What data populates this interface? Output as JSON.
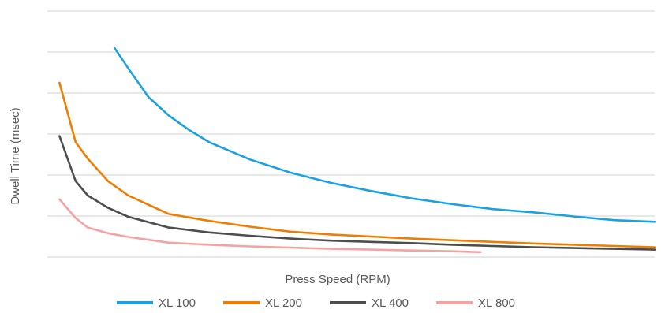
{
  "chart_data": {
    "type": "line",
    "title": "",
    "xlabel": "Press Speed (RPM)",
    "ylabel": "Dwell Time (msec)",
    "x_tick_labels": false,
    "y_tick_labels": false,
    "grid": true,
    "ylim": [
      0,
      6
    ],
    "xlim": [
      0,
      15
    ],
    "legend_position": "bottom",
    "series": [
      {
        "name": "XL 100",
        "color": "#1ba1e2",
        "x": [
          1.66,
          2.0,
          2.5,
          3.0,
          3.5,
          4.0,
          5.0,
          6.0,
          7.0,
          8.0,
          9.0,
          10.0,
          11.0,
          12.0,
          13.0,
          14.0,
          15.0
        ],
        "y": [
          5.1,
          4.6,
          3.9,
          3.45,
          3.1,
          2.8,
          2.38,
          2.06,
          1.81,
          1.61,
          1.43,
          1.29,
          1.17,
          1.09,
          0.99,
          0.9,
          0.86
        ]
      },
      {
        "name": "XL 200",
        "color": "#ee7d00",
        "x": [
          0.3,
          0.7,
          1.0,
          1.5,
          2.0,
          3.0,
          4.0,
          5.0,
          6.0,
          7.0,
          8.0,
          9.0,
          10.0,
          11.0,
          12.0,
          13.0,
          14.0,
          15.0
        ],
        "y": [
          4.25,
          2.8,
          2.4,
          1.85,
          1.5,
          1.05,
          0.88,
          0.74,
          0.62,
          0.55,
          0.5,
          0.45,
          0.41,
          0.37,
          0.33,
          0.3,
          0.27,
          0.24
        ]
      },
      {
        "name": "XL 400",
        "color": "#4d4d4d",
        "x": [
          0.3,
          0.7,
          1.0,
          1.5,
          2.0,
          3.0,
          4.0,
          5.0,
          6.0,
          7.0,
          8.0,
          9.0,
          10.0,
          11.0,
          12.0,
          13.0,
          14.0,
          15.0
        ],
        "y": [
          2.95,
          1.85,
          1.5,
          1.2,
          0.98,
          0.72,
          0.6,
          0.52,
          0.45,
          0.4,
          0.37,
          0.34,
          0.3,
          0.27,
          0.24,
          0.22,
          0.2,
          0.18
        ]
      },
      {
        "name": "XL 800",
        "color": "#f4a3a3",
        "x": [
          0.3,
          0.7,
          1.0,
          1.5,
          2.0,
          3.0,
          4.0,
          5.0,
          6.0,
          7.0,
          8.0,
          9.0,
          10.0,
          10.7
        ],
        "y": [
          1.41,
          0.95,
          0.72,
          0.58,
          0.49,
          0.35,
          0.3,
          0.26,
          0.23,
          0.2,
          0.18,
          0.16,
          0.14,
          0.12
        ]
      }
    ]
  }
}
